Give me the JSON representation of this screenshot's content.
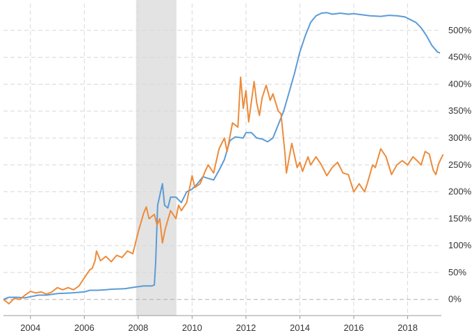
{
  "chart_data": {
    "type": "line",
    "x_ticks": [
      "2004",
      "2006",
      "2008",
      "2010",
      "2012",
      "2014",
      "2016",
      "2018"
    ],
    "y_ticks": [
      "0%",
      "50%",
      "100%",
      "150%",
      "200%",
      "250%",
      "300%",
      "350%",
      "400%",
      "450%",
      "500%"
    ],
    "ylim": [
      -30,
      550
    ],
    "xlim": [
      2003.0,
      2019.25
    ],
    "grid": true,
    "shaded_regions": [
      {
        "start": 2007.92,
        "end": 2009.42,
        "color": "#e3e3e3"
      }
    ],
    "series": [
      {
        "color": "#5b9bd5",
        "points": [
          [
            2003.0,
            0
          ],
          [
            2003.2,
            4
          ],
          [
            2003.5,
            4
          ],
          [
            2003.8,
            3
          ],
          [
            2004.0,
            5
          ],
          [
            2004.3,
            8
          ],
          [
            2004.6,
            8
          ],
          [
            2005.0,
            11
          ],
          [
            2005.5,
            12
          ],
          [
            2006.0,
            14
          ],
          [
            2006.2,
            17
          ],
          [
            2006.5,
            17
          ],
          [
            2006.8,
            18
          ],
          [
            2007.0,
            19
          ],
          [
            2007.5,
            20
          ],
          [
            2007.9,
            23
          ],
          [
            2008.2,
            25
          ],
          [
            2008.5,
            25
          ],
          [
            2008.6,
            27
          ],
          [
            2008.65,
            70
          ],
          [
            2008.72,
            175
          ],
          [
            2008.9,
            215
          ],
          [
            2008.98,
            175
          ],
          [
            2009.1,
            170
          ],
          [
            2009.2,
            190
          ],
          [
            2009.4,
            190
          ],
          [
            2009.6,
            180
          ],
          [
            2009.8,
            200
          ],
          [
            2010.0,
            205
          ],
          [
            2010.2,
            215
          ],
          [
            2010.4,
            228
          ],
          [
            2010.6,
            225
          ],
          [
            2010.8,
            222
          ],
          [
            2011.0,
            240
          ],
          [
            2011.2,
            260
          ],
          [
            2011.4,
            295
          ],
          [
            2011.6,
            302
          ],
          [
            2011.9,
            300
          ],
          [
            2012.0,
            310
          ],
          [
            2012.2,
            310
          ],
          [
            2012.4,
            300
          ],
          [
            2012.6,
            298
          ],
          [
            2012.8,
            293
          ],
          [
            2013.0,
            300
          ],
          [
            2013.2,
            325
          ],
          [
            2013.4,
            350
          ],
          [
            2013.6,
            385
          ],
          [
            2013.8,
            420
          ],
          [
            2014.0,
            460
          ],
          [
            2014.2,
            490
          ],
          [
            2014.4,
            515
          ],
          [
            2014.6,
            527
          ],
          [
            2014.8,
            532
          ],
          [
            2015.0,
            533
          ],
          [
            2015.2,
            530
          ],
          [
            2015.5,
            532
          ],
          [
            2015.8,
            530
          ],
          [
            2016.0,
            531
          ],
          [
            2016.3,
            529
          ],
          [
            2016.6,
            527
          ],
          [
            2017.0,
            526
          ],
          [
            2017.3,
            528
          ],
          [
            2017.6,
            527
          ],
          [
            2017.9,
            525
          ],
          [
            2018.1,
            520
          ],
          [
            2018.3,
            515
          ],
          [
            2018.5,
            505
          ],
          [
            2018.7,
            490
          ],
          [
            2018.9,
            472
          ],
          [
            2019.1,
            460
          ],
          [
            2019.2,
            458
          ]
        ]
      },
      {
        "color": "#ed8b3a",
        "points": [
          [
            2003.0,
            0
          ],
          [
            2003.2,
            -8
          ],
          [
            2003.4,
            2
          ],
          [
            2003.6,
            0
          ],
          [
            2003.8,
            8
          ],
          [
            2004.0,
            15
          ],
          [
            2004.2,
            12
          ],
          [
            2004.4,
            14
          ],
          [
            2004.6,
            10
          ],
          [
            2004.8,
            14
          ],
          [
            2005.0,
            22
          ],
          [
            2005.2,
            18
          ],
          [
            2005.4,
            22
          ],
          [
            2005.6,
            18
          ],
          [
            2005.8,
            25
          ],
          [
            2006.0,
            40
          ],
          [
            2006.2,
            55
          ],
          [
            2006.3,
            58
          ],
          [
            2006.4,
            72
          ],
          [
            2006.45,
            90
          ],
          [
            2006.6,
            72
          ],
          [
            2006.8,
            80
          ],
          [
            2007.0,
            70
          ],
          [
            2007.2,
            82
          ],
          [
            2007.4,
            78
          ],
          [
            2007.6,
            90
          ],
          [
            2007.8,
            85
          ],
          [
            2008.0,
            125
          ],
          [
            2008.2,
            160
          ],
          [
            2008.3,
            172
          ],
          [
            2008.4,
            150
          ],
          [
            2008.6,
            158
          ],
          [
            2008.7,
            138
          ],
          [
            2008.8,
            150
          ],
          [
            2008.9,
            105
          ],
          [
            2009.0,
            130
          ],
          [
            2009.2,
            165
          ],
          [
            2009.4,
            150
          ],
          [
            2009.5,
            175
          ],
          [
            2009.6,
            165
          ],
          [
            2009.8,
            180
          ],
          [
            2010.0,
            230
          ],
          [
            2010.1,
            208
          ],
          [
            2010.3,
            215
          ],
          [
            2010.5,
            240
          ],
          [
            2010.6,
            250
          ],
          [
            2010.8,
            235
          ],
          [
            2011.0,
            280
          ],
          [
            2011.2,
            300
          ],
          [
            2011.3,
            275
          ],
          [
            2011.5,
            328
          ],
          [
            2011.7,
            320
          ],
          [
            2011.8,
            413
          ],
          [
            2011.9,
            355
          ],
          [
            2012.0,
            388
          ],
          [
            2012.1,
            330
          ],
          [
            2012.3,
            405
          ],
          [
            2012.4,
            365
          ],
          [
            2012.5,
            342
          ],
          [
            2012.6,
            375
          ],
          [
            2012.75,
            398
          ],
          [
            2012.9,
            370
          ],
          [
            2013.0,
            382
          ],
          [
            2013.2,
            350
          ],
          [
            2013.3,
            345
          ],
          [
            2013.45,
            270
          ],
          [
            2013.5,
            235
          ],
          [
            2013.7,
            290
          ],
          [
            2013.9,
            245
          ],
          [
            2014.0,
            255
          ],
          [
            2014.1,
            238
          ],
          [
            2014.3,
            265
          ],
          [
            2014.4,
            250
          ],
          [
            2014.6,
            265
          ],
          [
            2014.8,
            250
          ],
          [
            2015.0,
            230
          ],
          [
            2015.2,
            245
          ],
          [
            2015.4,
            255
          ],
          [
            2015.6,
            235
          ],
          [
            2015.8,
            232
          ],
          [
            2016.0,
            200
          ],
          [
            2016.2,
            215
          ],
          [
            2016.4,
            200
          ],
          [
            2016.5,
            215
          ],
          [
            2016.7,
            250
          ],
          [
            2016.8,
            245
          ],
          [
            2017.0,
            280
          ],
          [
            2017.2,
            265
          ],
          [
            2017.4,
            232
          ],
          [
            2017.6,
            250
          ],
          [
            2017.8,
            258
          ],
          [
            2018.0,
            250
          ],
          [
            2018.2,
            265
          ],
          [
            2018.35,
            258
          ],
          [
            2018.5,
            250
          ],
          [
            2018.65,
            275
          ],
          [
            2018.8,
            270
          ],
          [
            2018.95,
            240
          ],
          [
            2019.05,
            232
          ],
          [
            2019.15,
            252
          ],
          [
            2019.3,
            268
          ],
          [
            2019.45,
            273
          ],
          [
            2019.6,
            268
          ]
        ]
      }
    ]
  }
}
